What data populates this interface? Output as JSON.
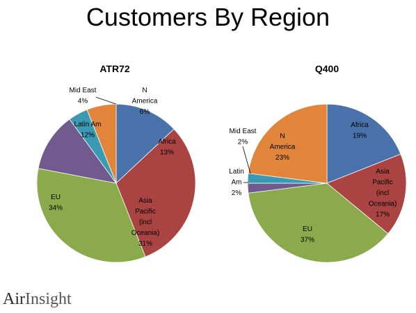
{
  "page": {
    "title": "Customers By Region"
  },
  "logo": {
    "part1": "Air",
    "part2": "Insight"
  },
  "chart_data": [
    {
      "type": "pie",
      "title": "ATR72",
      "slices": [
        {
          "label": [
            "Africa",
            "13%"
          ],
          "value": 13,
          "color": "#4a72aa"
        },
        {
          "label": [
            "Asia",
            "Pacific",
            "(incl",
            "Oceania)",
            "31%"
          ],
          "value": 31,
          "color": "#a94442"
        },
        {
          "label": [
            "EU",
            "34%"
          ],
          "value": 34,
          "color": "#8aaa4c"
        },
        {
          "label": [
            "Latin Am",
            "12%"
          ],
          "value": 12,
          "color": "#705a8e"
        },
        {
          "label": [
            "Mid East",
            "4%"
          ],
          "value": 4,
          "color": "#3a9ab1"
        },
        {
          "label": [
            "N",
            "America",
            "6%"
          ],
          "value": 6,
          "color": "#e0853a"
        }
      ]
    },
    {
      "type": "pie",
      "title": "Q400",
      "slices": [
        {
          "label": [
            "Africa",
            "19%"
          ],
          "value": 19,
          "color": "#4a72aa"
        },
        {
          "label": [
            "Asia",
            "Pacific",
            "(incl",
            "Oceania)",
            "17%"
          ],
          "value": 17,
          "color": "#a94442"
        },
        {
          "label": [
            "EU",
            "37%"
          ],
          "value": 37,
          "color": "#8aaa4c"
        },
        {
          "label": [
            "Latin",
            "Am",
            "2%"
          ],
          "value": 2,
          "color": "#705a8e"
        },
        {
          "label": [
            "Mid East",
            "2%"
          ],
          "value": 2,
          "color": "#3a9ab1"
        },
        {
          "label": [
            "N",
            "America",
            "23%"
          ],
          "value": 23,
          "color": "#e0853a"
        }
      ]
    }
  ]
}
